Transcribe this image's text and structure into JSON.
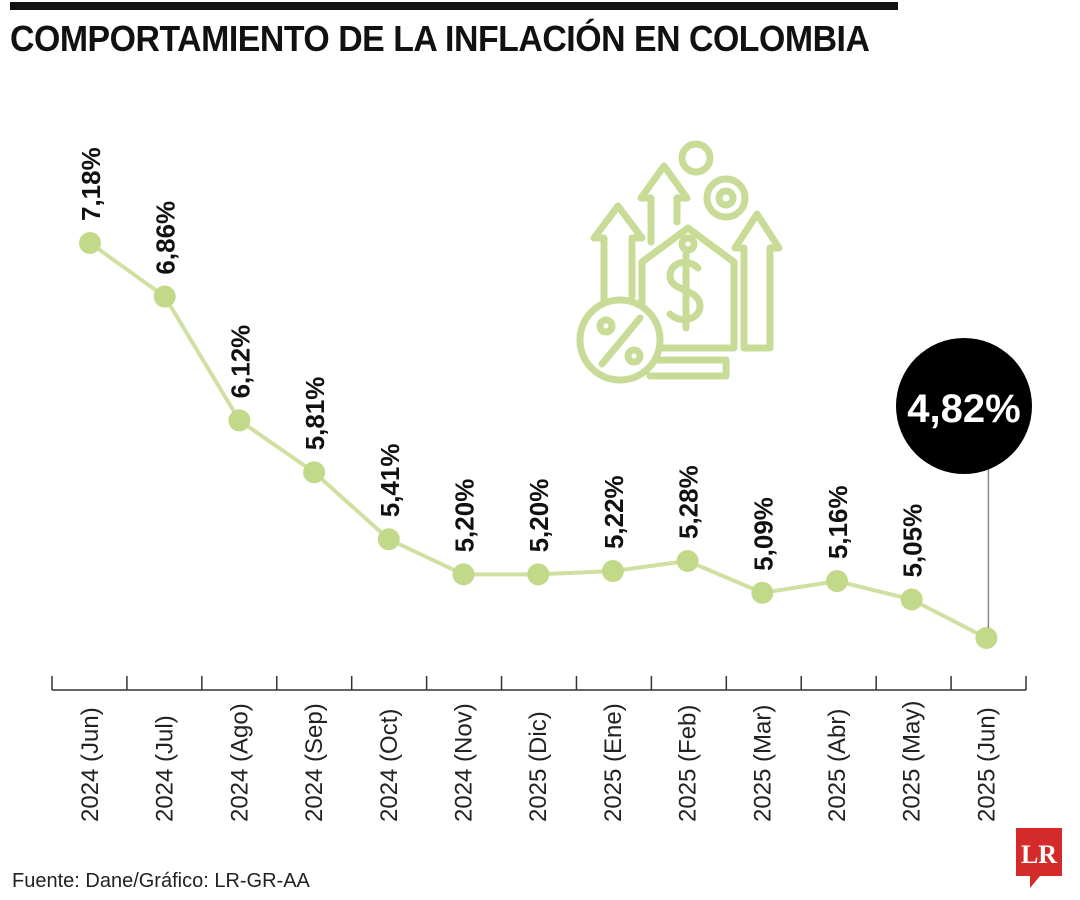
{
  "title": "COMPORTAMIENTO DE LA INFLACIÓN EN COLOMBIA",
  "source": "Fuente: Dane/Gráfico: LR-GR-AA",
  "logo_text": "LR",
  "colors": {
    "line": "#cfe0a2",
    "point": "#c3d98a",
    "text": "#111111",
    "highlight_bg": "#000000",
    "highlight_text": "#ffffff",
    "logo": "#d42a2a",
    "icon": "#c8dc98"
  },
  "icon": "price-tag-dollar-percent-arrows-icon",
  "chart_data": {
    "type": "line",
    "title": "COMPORTAMIENTO DE LA INFLACIÓN EN COLOMBIA",
    "xlabel": "",
    "ylabel": "",
    "categories": [
      "2024 (Jun)",
      "2024 (Jul)",
      "2024 (Ago)",
      "2024 (Sep)",
      "2024 (Oct)",
      "2024 (Nov)",
      "2025 (Dic)",
      "2025 (Ene)",
      "2025 (Feb)",
      "2025 (Mar)",
      "2025 (Abr)",
      "2025 (May)",
      "2025 (Jun)"
    ],
    "values": [
      7.18,
      6.86,
      6.12,
      5.81,
      5.41,
      5.2,
      5.2,
      5.22,
      5.28,
      5.09,
      5.16,
      5.05,
      4.82
    ],
    "value_labels": [
      "7,18%",
      "6,86%",
      "6,12%",
      "5,81%",
      "5,41%",
      "5,20%",
      "5,20%",
      "5,22%",
      "5,28%",
      "5,09%",
      "5,16%",
      "5,05%",
      "4,82%"
    ],
    "highlight_index": 12,
    "highlight_label": "4,82%",
    "grid": false,
    "legend": "none"
  }
}
